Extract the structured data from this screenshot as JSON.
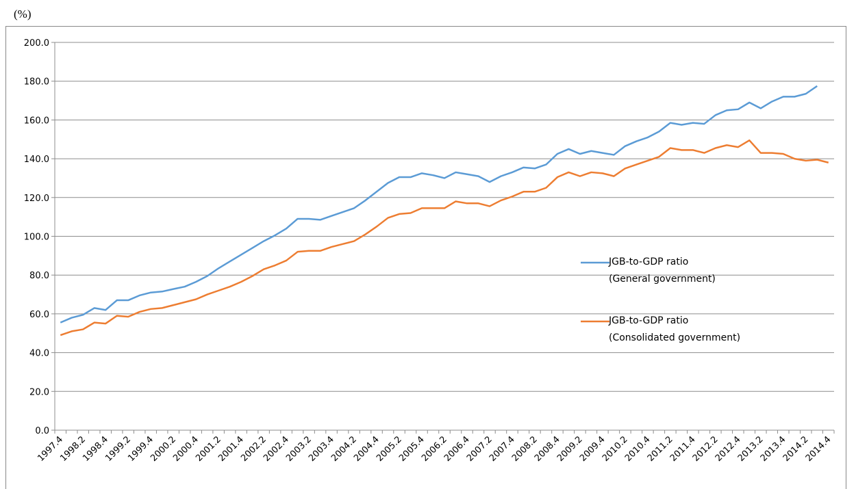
{
  "chart_data": {
    "type": "line",
    "unit_label": "(%)",
    "categories": [
      "1997.4",
      null,
      "1998.2",
      null,
      "1998.4",
      null,
      "1999.2",
      null,
      "1999.4",
      null,
      "2000.2",
      null,
      "2000.4",
      null,
      "2001.2",
      null,
      "2001.4",
      null,
      "2002.2",
      null,
      "2002.4",
      null,
      "2003.2",
      null,
      "2003.4",
      null,
      "2004.2",
      null,
      "2004.4",
      null,
      "2005.2",
      null,
      "2005.4",
      null,
      "2006.2",
      null,
      "2006.4",
      null,
      "2007.2",
      null,
      "2007.4",
      null,
      "2008.2",
      null,
      "2008.4",
      null,
      "2009.2",
      null,
      "2009.4",
      null,
      "2010.2",
      null,
      "2010.4",
      null,
      "2011.2",
      null,
      "2011.4",
      null,
      "2012.2",
      null,
      "2012.4",
      null,
      "2013.2",
      null,
      "2013.4",
      null,
      "2014.2",
      null,
      "2014.4"
    ],
    "series": [
      {
        "name": "JGB-to-GDP ratio\n(General government)",
        "color": "#5b9bd5",
        "values": [
          55.5,
          58,
          59.5,
          63,
          62,
          67,
          67,
          69.5,
          71,
          71.5,
          72.8,
          74,
          76.5,
          79.5,
          83.5,
          87,
          90.5,
          94,
          97.5,
          100.5,
          104,
          109,
          109,
          108.5,
          110.5,
          112.5,
          114.5,
          118.5,
          123,
          127.5,
          130.5,
          130.5,
          132.5,
          131.5,
          130,
          133,
          132,
          131,
          128,
          131,
          133,
          135.5,
          135,
          137,
          142.5,
          145,
          142.5,
          144,
          143,
          142,
          146.5,
          149,
          151,
          154,
          158.5,
          157.5,
          158.5,
          158,
          162.5,
          165,
          165.5,
          169,
          166,
          169.5,
          172,
          172,
          173.5,
          177.5,
          null
        ]
      },
      {
        "name": "JGB-to-GDP ratio\n(Consolidated government)",
        "color": "#ed7d31",
        "values": [
          49,
          51,
          52,
          55.5,
          55,
          59,
          58.5,
          61,
          62.5,
          63,
          64.5,
          66,
          67.5,
          70,
          72,
          74,
          76.5,
          79.5,
          83,
          85,
          87.5,
          92,
          92.5,
          92.5,
          94.5,
          96,
          97.5,
          101,
          105,
          109.5,
          111.5,
          112,
          114.5,
          114.5,
          114.5,
          118,
          117,
          117,
          115.5,
          118.5,
          120.5,
          123,
          123,
          125,
          130.5,
          133,
          131,
          133,
          132.5,
          131,
          135,
          137,
          139,
          141,
          145.5,
          144.5,
          144.5,
          143,
          145.5,
          147,
          146,
          149.5,
          143,
          143,
          142.5,
          140,
          139,
          139.5,
          138
        ]
      }
    ],
    "ylim": [
      0,
      200
    ],
    "yticks": [
      {
        "value": 0,
        "label": "0.0"
      },
      {
        "value": 20,
        "label": "20.0"
      },
      {
        "value": 40,
        "label": "40.0"
      },
      {
        "value": 60,
        "label": "60.0"
      },
      {
        "value": 80,
        "label": "80.0"
      },
      {
        "value": 100,
        "label": "100.0"
      },
      {
        "value": 120,
        "label": "120.0"
      },
      {
        "value": 140,
        "label": "140.0"
      },
      {
        "value": 160,
        "label": "160.0"
      },
      {
        "value": 180,
        "label": "180.0"
      },
      {
        "value": 200,
        "label": "200.0"
      }
    ],
    "grid": true
  }
}
